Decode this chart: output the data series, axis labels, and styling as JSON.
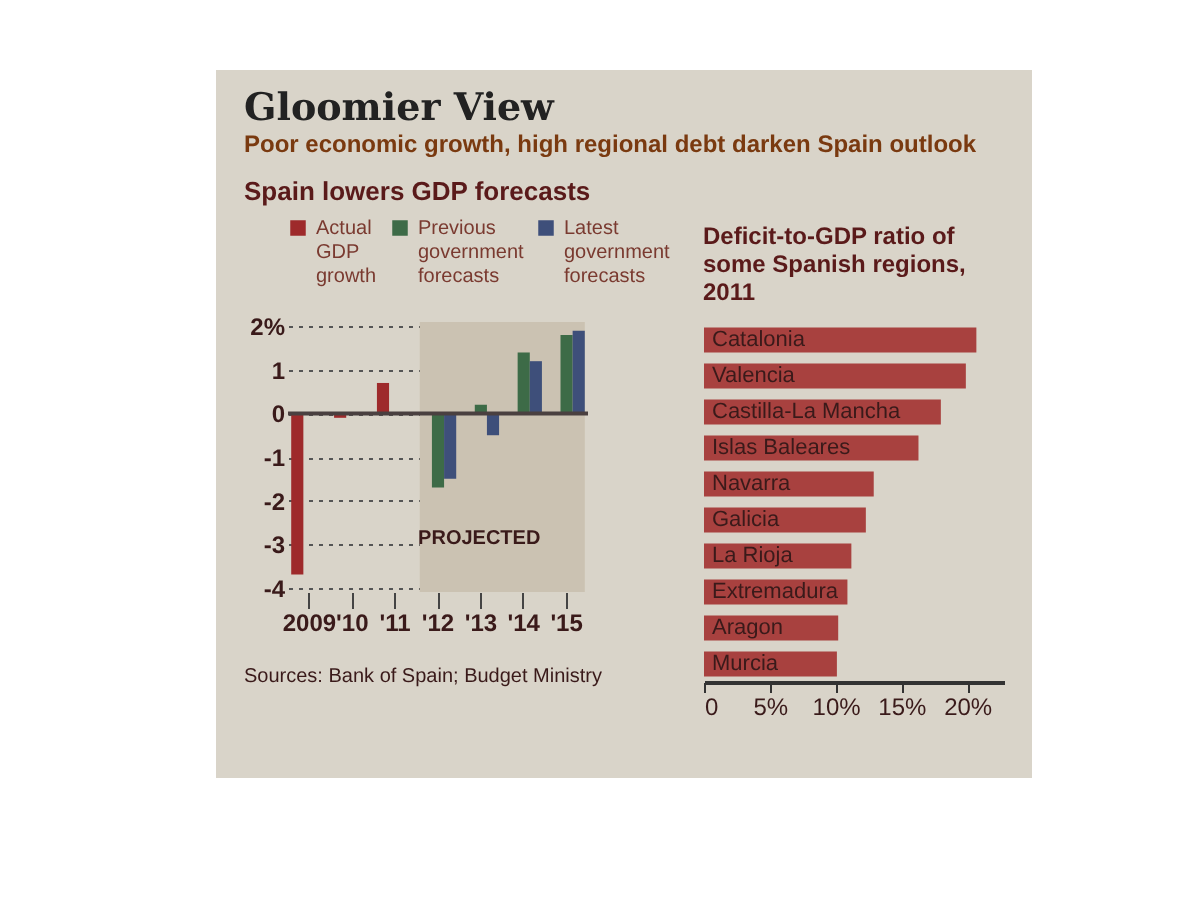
{
  "chart_data": [
    {
      "type": "bar",
      "title": "Gloomier View",
      "subtitle": "Poor economic growth, high regional debt darken Spain outlook",
      "annotations": [
        "Spain lowers GDP forecasts",
        "Sources: Bank of Spain; Budget Ministry"
      ],
      "categories": [
        "2009",
        "'10",
        "'11",
        "'12",
        "'13",
        "'14",
        "'15"
      ],
      "series": [
        {
          "name": "Actual GDP growth",
          "color": "#9e2a2b",
          "values": [
            -3.7,
            -0.1,
            0.7,
            null,
            null,
            null,
            null
          ]
        },
        {
          "name": "Previous government forecasts",
          "color": "#3d6b47",
          "values": [
            null,
            null,
            null,
            -1.7,
            0.2,
            1.4,
            1.8
          ]
        },
        {
          "name": "Latest government forecasts",
          "color": "#3e4f7a",
          "values": [
            null,
            null,
            null,
            -1.5,
            -0.5,
            1.2,
            1.9
          ]
        }
      ],
      "ylim": [
        -4.1,
        2.1
      ],
      "yticks": [
        -4,
        -3,
        -2,
        -1,
        0,
        1,
        {
          "value": 2,
          "label": "2%"
        }
      ],
      "grid": "y",
      "legend": "top",
      "bands": [
        {
          "axis": "x",
          "from": "'12",
          "to": "'15",
          "label": "PROJECTED",
          "color": "#cbc2b2"
        }
      ],
      "ref_lines": [
        {
          "axis": "y",
          "value": 0,
          "color": "#4a4040"
        }
      ]
    },
    {
      "type": "bar",
      "orientation": "horizontal",
      "title": "Deficit-to-GDP ratio of some Spanish regions, 2011",
      "categories": [
        "Catalonia",
        "Valencia",
        "Castilla-La Mancha",
        "Islas Baleares",
        "Navarra",
        "Galicia",
        "La Rioja",
        "Extremadura",
        "Aragon",
        "Murcia"
      ],
      "values": [
        20.7,
        19.9,
        18.0,
        16.3,
        12.9,
        12.3,
        11.2,
        10.9,
        10.2,
        10.1
      ],
      "color": "#a8413f",
      "xlim": [
        0,
        22.8
      ],
      "xticks": [
        0,
        {
          "value": 5,
          "label": "5%"
        },
        {
          "value": 10,
          "label": "10%"
        },
        {
          "value": 15,
          "label": "15%"
        },
        {
          "value": 20,
          "label": "20%"
        }
      ],
      "tick_labels": "x",
      "grid": false
    }
  ]
}
